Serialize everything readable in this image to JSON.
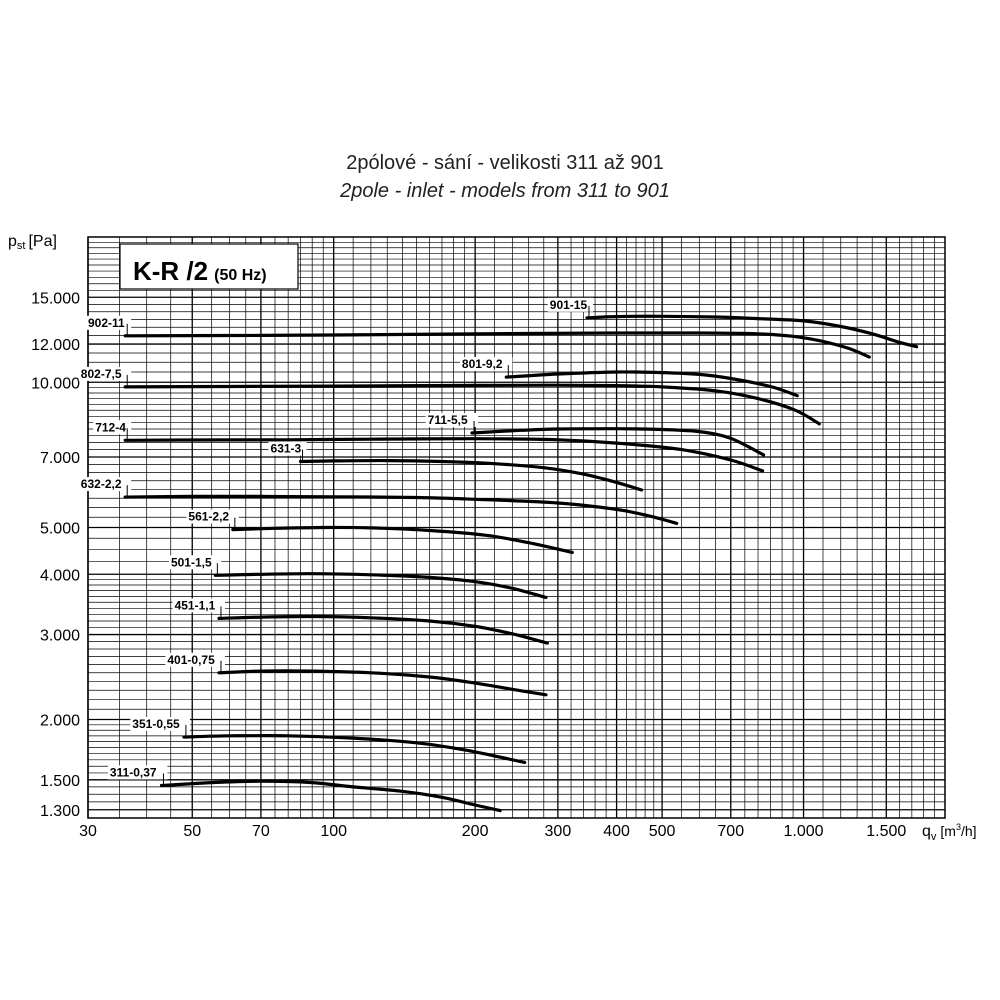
{
  "titles": {
    "line1": "2pólové - sání - velikosti 311 až 901",
    "line2": "2pole - inlet - models from 311 to 901"
  },
  "box": {
    "main": "K-R /2",
    "sub": "(50 Hz)"
  },
  "axes": {
    "ylabel_main": "p",
    "ylabel_sub": "st",
    "ylabel_unit": "[Pa]",
    "xlabel_main": "q",
    "xlabel_sub": "v",
    "xlabel_unit_pre": "[m",
    "xlabel_unit_sup": "3",
    "xlabel_unit_post": "/h]"
  },
  "chart_data": {
    "type": "line",
    "x_scale": "log",
    "y_scale": "log",
    "xlim": [
      30,
      2000
    ],
    "ylim": [
      1250,
      20000
    ],
    "grid": true,
    "x_ticks": [
      {
        "value": 30,
        "label": "30"
      },
      {
        "value": 50,
        "label": "50"
      },
      {
        "value": 70,
        "label": "70"
      },
      {
        "value": 100,
        "label": "100"
      },
      {
        "value": 200,
        "label": "200"
      },
      {
        "value": 300,
        "label": "300"
      },
      {
        "value": 400,
        "label": "400"
      },
      {
        "value": 500,
        "label": "500"
      },
      {
        "value": 700,
        "label": "700"
      },
      {
        "value": 1000,
        "label": "1.000"
      },
      {
        "value": 1500,
        "label": "1.500"
      }
    ],
    "y_ticks": [
      {
        "value": 1300,
        "label": "1.300"
      },
      {
        "value": 1500,
        "label": "1.500"
      },
      {
        "value": 2000,
        "label": "2.000"
      },
      {
        "value": 3000,
        "label": "3.000"
      },
      {
        "value": 4000,
        "label": "4.000"
      },
      {
        "value": 5000,
        "label": "5.000"
      },
      {
        "value": 7000,
        "label": "7.000"
      },
      {
        "value": 10000,
        "label": "10.000"
      },
      {
        "value": 12000,
        "label": "12.000"
      },
      {
        "value": 15000,
        "label": "15.000"
      }
    ],
    "series": [
      {
        "name": "311-0,37",
        "label_anchor": "left",
        "points": [
          [
            43,
            1460
          ],
          [
            55,
            1480
          ],
          [
            70,
            1490
          ],
          [
            90,
            1480
          ],
          [
            110,
            1450
          ],
          [
            140,
            1420
          ],
          [
            170,
            1380
          ],
          [
            200,
            1330
          ],
          [
            226,
            1295
          ]
        ]
      },
      {
        "name": "351-0,55",
        "label_anchor": "left",
        "points": [
          [
            48,
            1840
          ],
          [
            60,
            1850
          ],
          [
            80,
            1850
          ],
          [
            110,
            1830
          ],
          [
            150,
            1790
          ],
          [
            190,
            1730
          ],
          [
            220,
            1680
          ],
          [
            255,
            1630
          ]
        ]
      },
      {
        "name": "401-0,75",
        "label_anchor": "left",
        "points": [
          [
            57,
            2500
          ],
          [
            70,
            2520
          ],
          [
            90,
            2520
          ],
          [
            120,
            2500
          ],
          [
            160,
            2450
          ],
          [
            200,
            2380
          ],
          [
            240,
            2310
          ],
          [
            283,
            2250
          ]
        ]
      },
      {
        "name": "451-1,1",
        "label_anchor": "left",
        "points": [
          [
            57,
            3240
          ],
          [
            70,
            3260
          ],
          [
            90,
            3270
          ],
          [
            120,
            3250
          ],
          [
            160,
            3200
          ],
          [
            200,
            3120
          ],
          [
            240,
            3010
          ],
          [
            285,
            2880
          ]
        ]
      },
      {
        "name": "501-1,5",
        "label_anchor": "left",
        "points": [
          [
            56,
            3980
          ],
          [
            70,
            4000
          ],
          [
            90,
            4010
          ],
          [
            120,
            3990
          ],
          [
            160,
            3940
          ],
          [
            200,
            3860
          ],
          [
            240,
            3740
          ],
          [
            283,
            3580
          ]
        ]
      },
      {
        "name": "561-2,2",
        "label_anchor": "left",
        "points": [
          [
            61,
            4950
          ],
          [
            75,
            4980
          ],
          [
            95,
            5000
          ],
          [
            120,
            4990
          ],
          [
            160,
            4930
          ],
          [
            210,
            4820
          ],
          [
            260,
            4650
          ],
          [
            322,
            4440
          ]
        ]
      },
      {
        "name": "632-2,2",
        "label_anchor": "left",
        "points": [
          [
            36,
            5780
          ],
          [
            50,
            5800
          ],
          [
            70,
            5800
          ],
          [
            100,
            5790
          ],
          [
            150,
            5770
          ],
          [
            200,
            5720
          ],
          [
            300,
            5620
          ],
          [
            400,
            5450
          ],
          [
            470,
            5280
          ],
          [
            537,
            5100
          ]
        ]
      },
      {
        "name": "631-3",
        "label_anchor": "left",
        "points": [
          [
            85,
            6850
          ],
          [
            100,
            6870
          ],
          [
            130,
            6880
          ],
          [
            170,
            6850
          ],
          [
            220,
            6780
          ],
          [
            280,
            6650
          ],
          [
            340,
            6450
          ],
          [
            400,
            6200
          ],
          [
            452,
            5980
          ]
        ]
      },
      {
        "name": "712-4",
        "label_anchor": "left",
        "points": [
          [
            36,
            7580
          ],
          [
            50,
            7590
          ],
          [
            80,
            7600
          ],
          [
            120,
            7620
          ],
          [
            200,
            7640
          ],
          [
            300,
            7600
          ],
          [
            400,
            7480
          ],
          [
            550,
            7250
          ],
          [
            700,
            6900
          ],
          [
            818,
            6550
          ]
        ]
      },
      {
        "name": "711-5,5",
        "label_anchor": "left",
        "points": [
          [
            197,
            7850
          ],
          [
            250,
            7950
          ],
          [
            300,
            8000
          ],
          [
            400,
            8010
          ],
          [
            500,
            7980
          ],
          [
            600,
            7900
          ],
          [
            700,
            7650
          ],
          [
            822,
            7070
          ]
        ]
      },
      {
        "name": "802-7,5",
        "label_anchor": "left",
        "points": [
          [
            36,
            9780
          ],
          [
            60,
            9800
          ],
          [
            100,
            9820
          ],
          [
            200,
            9850
          ],
          [
            300,
            9860
          ],
          [
            400,
            9840
          ],
          [
            500,
            9780
          ],
          [
            650,
            9600
          ],
          [
            800,
            9250
          ],
          [
            960,
            8750
          ],
          [
            1080,
            8200
          ]
        ]
      },
      {
        "name": "801-9,2",
        "label_anchor": "left",
        "points": [
          [
            233,
            10250
          ],
          [
            300,
            10400
          ],
          [
            400,
            10500
          ],
          [
            500,
            10470
          ],
          [
            600,
            10380
          ],
          [
            700,
            10180
          ],
          [
            850,
            9800
          ],
          [
            970,
            9380
          ]
        ]
      },
      {
        "name": "902-11",
        "label_anchor": "left",
        "points": [
          [
            36,
            12480
          ],
          [
            60,
            12500
          ],
          [
            100,
            12530
          ],
          [
            200,
            12600
          ],
          [
            400,
            12650
          ],
          [
            600,
            12650
          ],
          [
            800,
            12600
          ],
          [
            950,
            12450
          ],
          [
            1100,
            12150
          ],
          [
            1250,
            11750
          ],
          [
            1380,
            11280
          ]
        ]
      },
      {
        "name": "901-15",
        "label_anchor": "left",
        "points": [
          [
            346,
            13600
          ],
          [
            400,
            13680
          ],
          [
            500,
            13700
          ],
          [
            650,
            13650
          ],
          [
            800,
            13550
          ],
          [
            1000,
            13400
          ],
          [
            1200,
            13050
          ],
          [
            1400,
            12600
          ],
          [
            1600,
            12100
          ],
          [
            1740,
            11850
          ]
        ]
      }
    ]
  }
}
